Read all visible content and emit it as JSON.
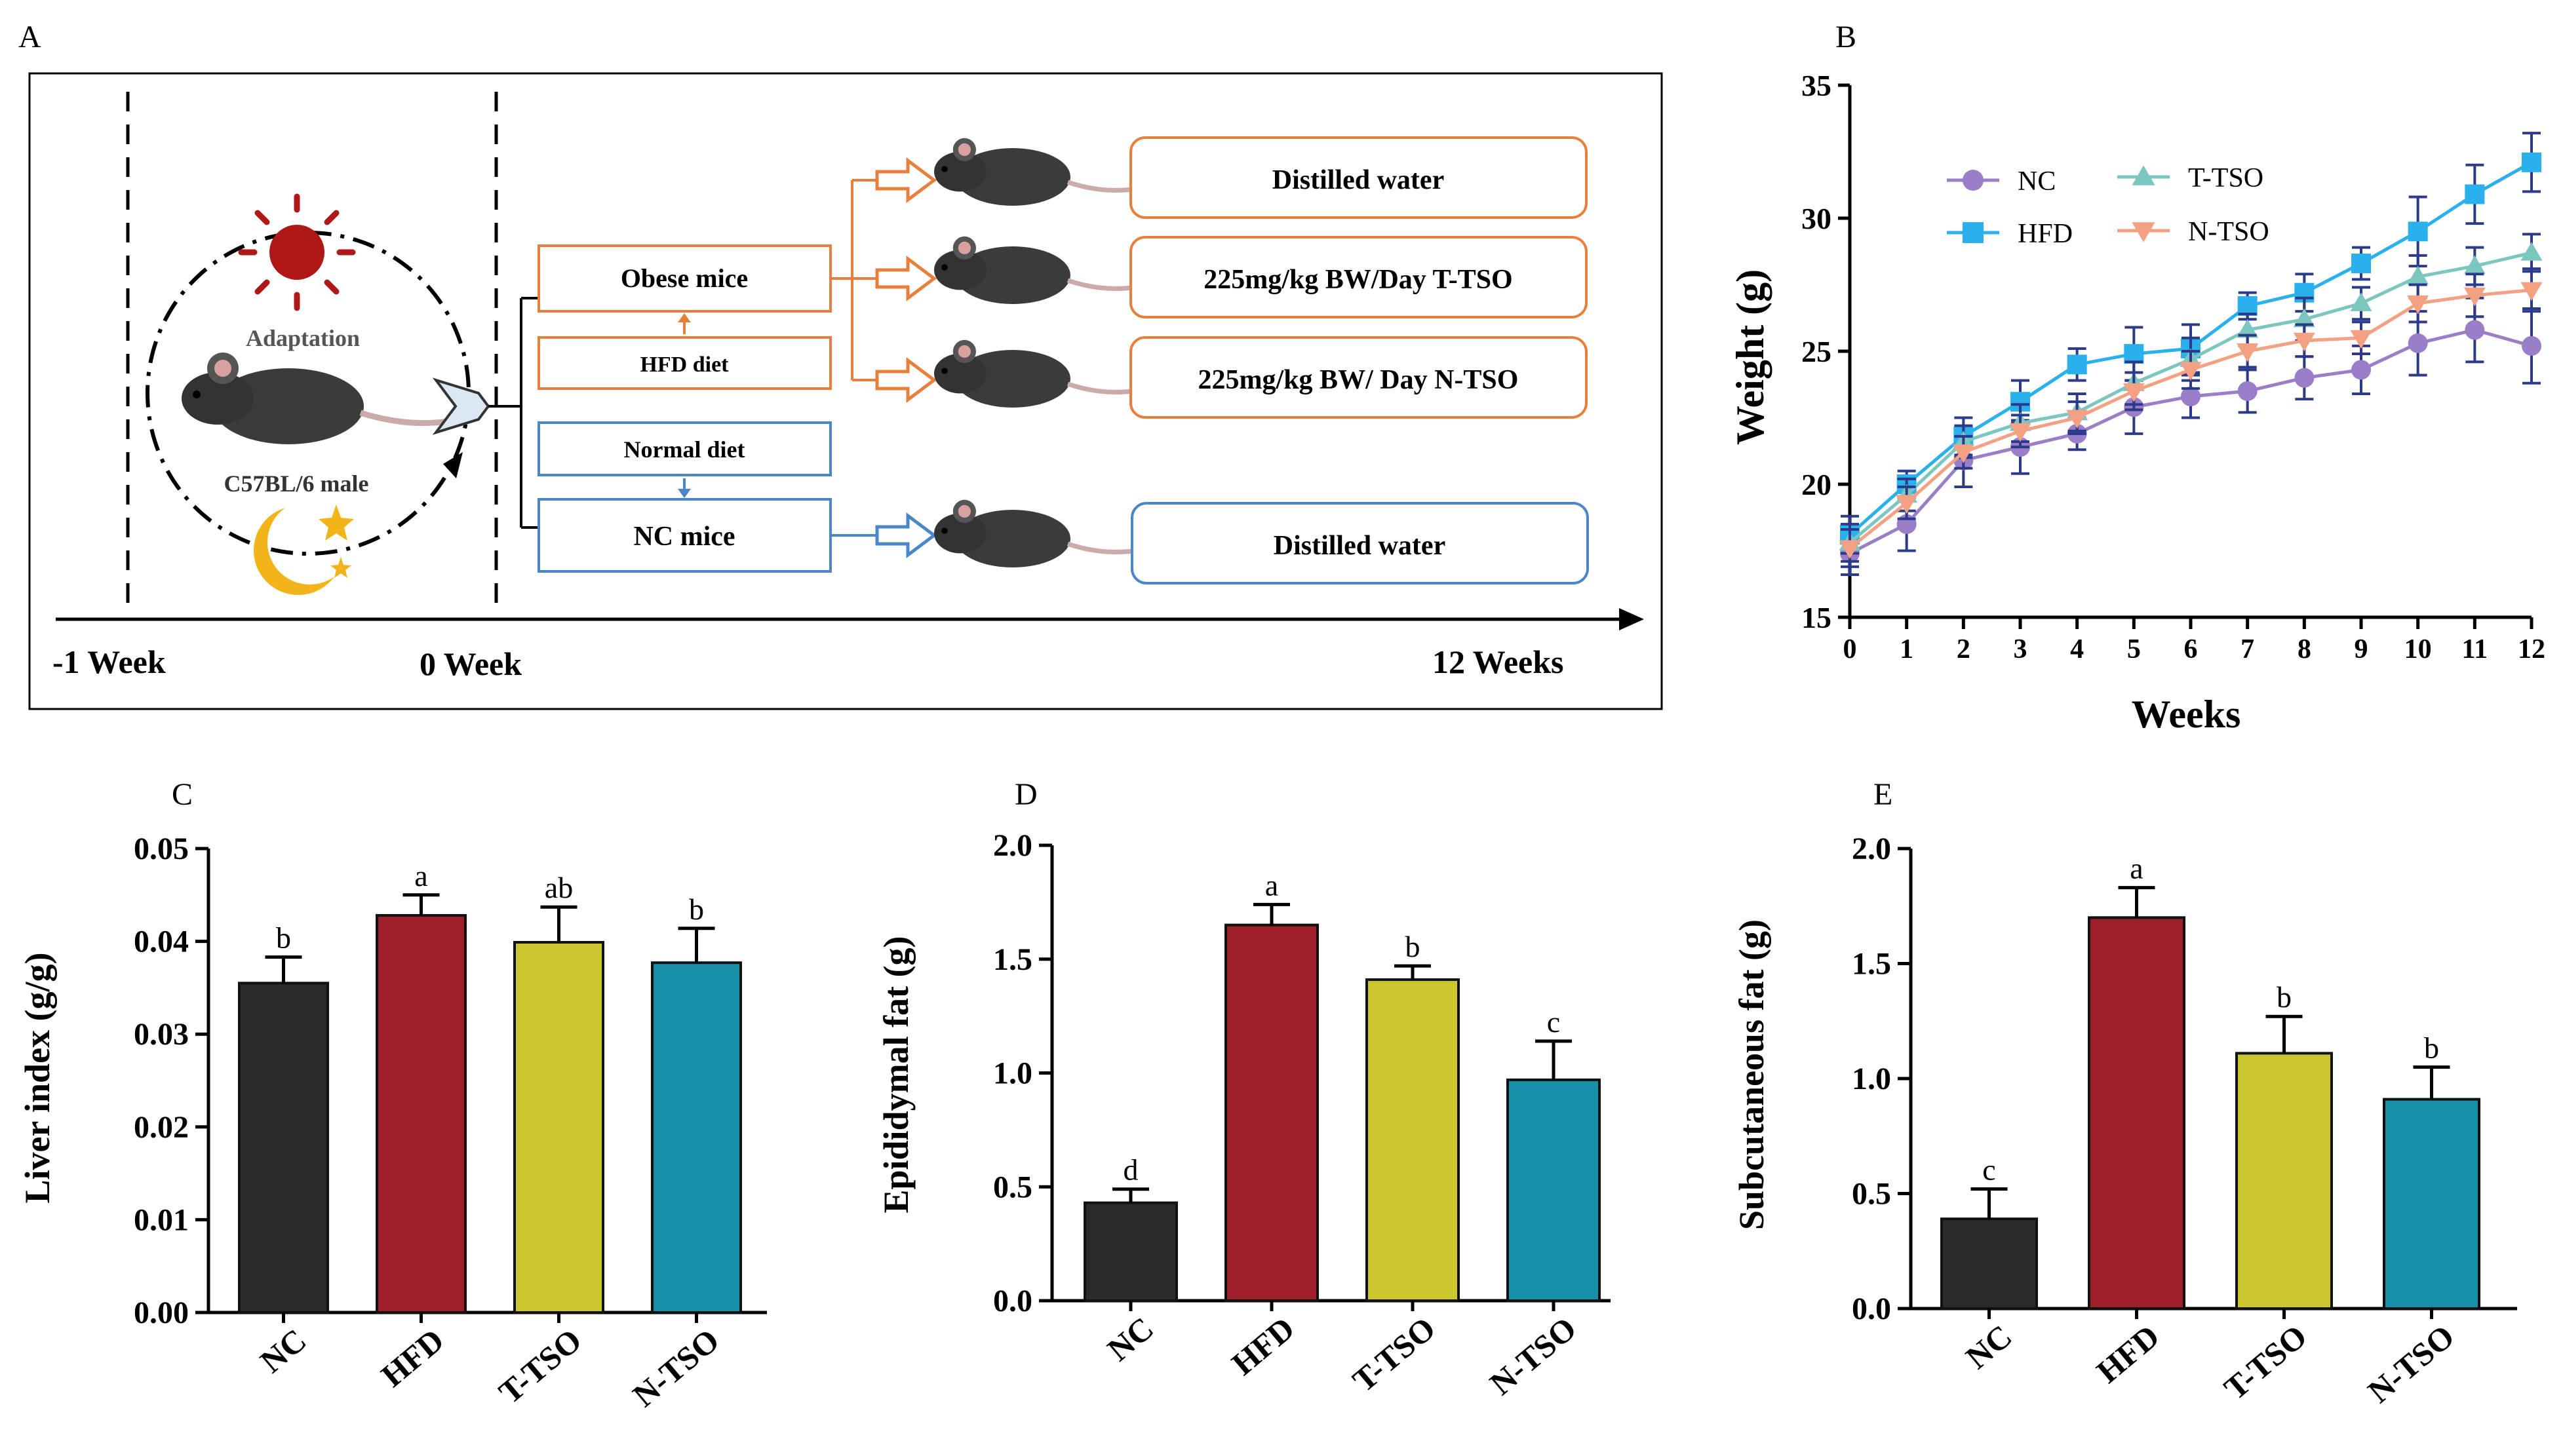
{
  "colors": {
    "orange": "#e87f3c",
    "blue": "#4a86c8",
    "nc": "#9b7ec8",
    "hfd": "#2ab0ea",
    "ttso": "#7cc6c0",
    "ntso": "#f4a083",
    "bar_nc": "#2b2b2b",
    "bar_hfd": "#9c1f2a",
    "bar_ttso": "#cbc62b",
    "bar_ntso": "#168fa8",
    "sun": "#b01818",
    "moon": "#f2b418",
    "axis": "#000000"
  },
  "panel_a": {
    "letter": "A",
    "adaptation": "Adaptation",
    "strain": "C57BL/6 male",
    "obese": "Obese mice",
    "hfd_diet": "HFD diet",
    "normal_diet": "Normal diet",
    "nc_mice": "NC mice",
    "treatments": [
      "Distilled water",
      "225mg/kg  BW/Day  T-TSO",
      "225mg/kg  BW/  Day N-TSO",
      "Distilled water"
    ],
    "timeline": [
      "-1 Week",
      "0 Week",
      "12 Weeks"
    ]
  },
  "chart_data": [
    {
      "id": "B",
      "letter": "B",
      "type": "line",
      "xlabel": "Weeks",
      "ylabel": "Weight (g)",
      "xlim": [
        0,
        12
      ],
      "ylim": [
        15,
        35
      ],
      "xticks": [
        0,
        1,
        2,
        3,
        4,
        5,
        6,
        7,
        8,
        9,
        10,
        11,
        12
      ],
      "yticks": [
        15,
        20,
        25,
        30,
        35
      ],
      "grid": false,
      "legend": "top-left",
      "x": [
        0,
        1,
        2,
        3,
        4,
        5,
        6,
        7,
        8,
        9,
        10,
        11,
        12
      ],
      "series": [
        {
          "name": "NC",
          "marker": "circle",
          "color": "#9b7ec8",
          "values": [
            17.4,
            18.5,
            20.9,
            21.4,
            21.9,
            22.9,
            23.3,
            23.5,
            24.0,
            24.3,
            25.3,
            25.8,
            25.2
          ],
          "err": [
            0.8,
            1.0,
            1.0,
            1.0,
            0.6,
            1.0,
            0.8,
            0.8,
            0.8,
            0.9,
            1.2,
            1.2,
            1.4
          ]
        },
        {
          "name": "HFD",
          "marker": "square",
          "color": "#2ab0ea",
          "values": [
            18.1,
            20.0,
            21.8,
            23.1,
            24.5,
            24.9,
            25.1,
            26.7,
            27.2,
            28.3,
            29.5,
            30.9,
            32.1
          ],
          "err": [
            0.7,
            0.5,
            0.7,
            0.8,
            0.6,
            1.0,
            0.9,
            0.5,
            0.7,
            0.6,
            1.3,
            1.1,
            1.1
          ]
        },
        {
          "name": "T-TSO",
          "marker": "triangle-up",
          "color": "#7cc6c0",
          "values": [
            17.8,
            19.6,
            21.6,
            22.3,
            22.7,
            23.8,
            24.7,
            25.8,
            26.2,
            26.8,
            27.8,
            28.2,
            28.7
          ],
          "err": [
            0.7,
            0.6,
            0.6,
            0.7,
            0.7,
            0.8,
            0.8,
            0.6,
            0.8,
            0.6,
            0.8,
            0.7,
            0.7
          ]
        },
        {
          "name": "N-TSO",
          "marker": "triangle-down",
          "color": "#f4a083",
          "values": [
            17.6,
            19.3,
            21.2,
            22.0,
            22.5,
            23.5,
            24.3,
            25.0,
            25.4,
            25.5,
            26.8,
            27.1,
            27.3
          ],
          "err": [
            0.7,
            0.6,
            0.6,
            0.6,
            0.6,
            0.7,
            0.7,
            0.6,
            0.6,
            0.6,
            0.7,
            0.8,
            0.8
          ]
        }
      ],
      "legend_entries": [
        "NC",
        "HFD",
        "T-TSO",
        "N-TSO"
      ]
    },
    {
      "id": "C",
      "letter": "C",
      "type": "bar",
      "ylabel": "Liver index (g/g)",
      "ylim": [
        0,
        0.05
      ],
      "yticks": [
        "0.00",
        "0.01",
        "0.02",
        "0.03",
        "0.04",
        "0.05"
      ],
      "categories": [
        "NC",
        "HFD",
        "T-TSO",
        "N-TSO"
      ],
      "values": [
        0.0355,
        0.0428,
        0.0399,
        0.0377
      ],
      "err": [
        0.0028,
        0.0022,
        0.0038,
        0.0037
      ],
      "labels": [
        "b",
        "a",
        "ab",
        "b"
      ]
    },
    {
      "id": "D",
      "letter": "D",
      "type": "bar",
      "ylabel": "Epididymal fat (g)",
      "ylim": [
        0,
        2.0
      ],
      "yticks": [
        "0.0",
        "0.5",
        "1.0",
        "1.5",
        "2.0"
      ],
      "categories": [
        "NC",
        "HFD",
        "T-TSO",
        "N-TSO"
      ],
      "values": [
        0.43,
        1.65,
        1.41,
        0.97
      ],
      "err": [
        0.06,
        0.09,
        0.06,
        0.17
      ],
      "labels": [
        "d",
        "a",
        "b",
        "c"
      ]
    },
    {
      "id": "E",
      "letter": "E",
      "type": "bar",
      "ylabel": "Subcutaneous fat (g)",
      "ylim": [
        0,
        2.0
      ],
      "yticks": [
        "0.0",
        "0.5",
        "1.0",
        "1.5",
        "2.0"
      ],
      "categories": [
        "NC",
        "HFD",
        "T-TSO",
        "N-TSO"
      ],
      "values": [
        0.39,
        1.7,
        1.11,
        0.91
      ],
      "err": [
        0.13,
        0.13,
        0.16,
        0.14
      ],
      "labels": [
        "c",
        "a",
        "b",
        "b"
      ]
    }
  ]
}
